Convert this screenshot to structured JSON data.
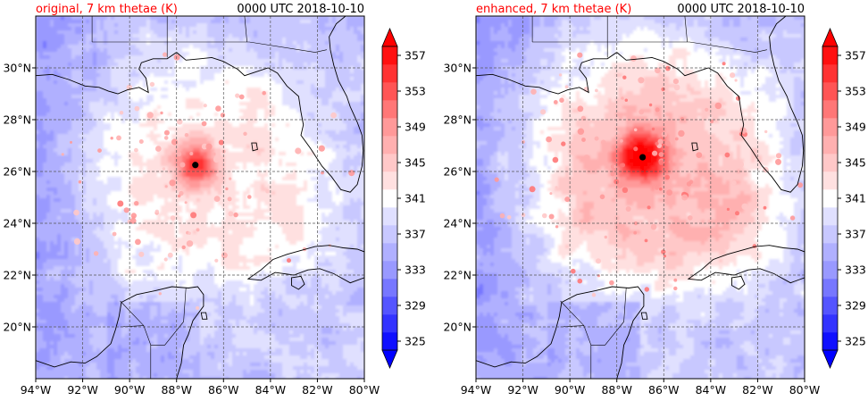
{
  "panels": [
    {
      "id": "original",
      "title": "original, 7 km thetae (K)",
      "time": "0000 UTC 2018-10-10",
      "storm_center": {
        "lon": -87.2,
        "lat": 26.25
      },
      "core_strength": 0.85,
      "envelope_strength": 0.55
    },
    {
      "id": "enhanced",
      "title": "enhanced, 7 km thetae (K)",
      "time": "0000 UTC 2018-10-10",
      "storm_center": {
        "lon": -86.9,
        "lat": 26.55
      },
      "core_strength": 1.0,
      "envelope_strength": 0.9
    }
  ],
  "axes": {
    "lon_range": [
      -94,
      -80
    ],
    "lat_range": [
      18,
      32
    ],
    "lon_ticks": [
      {
        "v": -94,
        "label": "94°W"
      },
      {
        "v": -92,
        "label": "92°W"
      },
      {
        "v": -90,
        "label": "90°W"
      },
      {
        "v": -88,
        "label": "88°W"
      },
      {
        "v": -86,
        "label": "86°W"
      },
      {
        "v": -84,
        "label": "84°W"
      },
      {
        "v": -82,
        "label": "82°W"
      },
      {
        "v": -80,
        "label": "80°W"
      }
    ],
    "lat_ticks": [
      {
        "v": 20,
        "label": "20°N"
      },
      {
        "v": 22,
        "label": "22°N"
      },
      {
        "v": 24,
        "label": "24°N"
      },
      {
        "v": 26,
        "label": "26°N"
      },
      {
        "v": 28,
        "label": "28°N"
      },
      {
        "v": 30,
        "label": "30°N"
      }
    ]
  },
  "colorbar": {
    "levels": [
      325,
      327,
      329,
      331,
      333,
      335,
      337,
      339,
      341,
      343,
      345,
      347,
      349,
      351,
      353,
      355,
      357,
      359
    ],
    "tick_labels": [
      "325",
      "329",
      "333",
      "337",
      "341",
      "345",
      "349",
      "353",
      "357"
    ],
    "colors": [
      "#1010ff",
      "#3333ff",
      "#5555ff",
      "#7777ff",
      "#9999ff",
      "#b0b0ff",
      "#c8c8ff",
      "#e0e0ff",
      "#ffffff",
      "#ffe0e0",
      "#ffc8c8",
      "#ffb0b0",
      "#ff9999",
      "#ff7777",
      "#ff5555",
      "#ff3333",
      "#ff1010"
    ],
    "extend_low_color": "#0000ff",
    "extend_high_color": "#ff0000"
  },
  "colors": {
    "title": "#ff0000",
    "land_line": "#000000",
    "grid": "#555555"
  }
}
